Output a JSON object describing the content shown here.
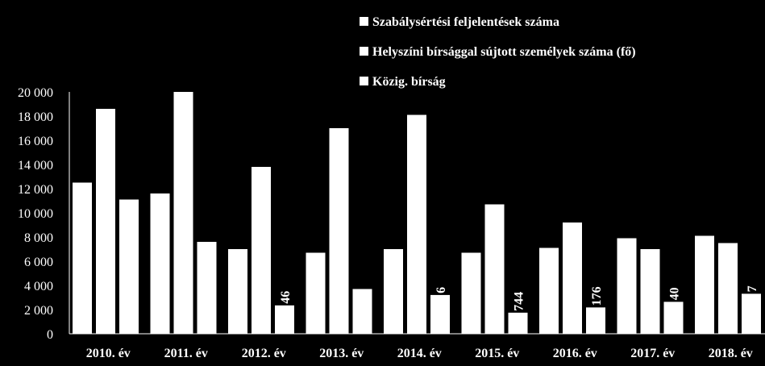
{
  "chart_data": {
    "type": "bar",
    "categories": [
      "2010. év",
      "2011. év",
      "2012. év",
      "2013. év",
      "2014. év",
      "2015. év",
      "2016. év",
      "2017. év",
      "2018. év"
    ],
    "series": [
      {
        "name": "Szabálysértési feljelentések száma",
        "values": [
          12500,
          11600,
          7000,
          6700,
          7000,
          6700,
          7100,
          7900,
          8100
        ]
      },
      {
        "name": "Helyszíni bírsággal sújtott személyek száma (fő)",
        "values": [
          18600,
          20000,
          13800,
          17000,
          18100,
          10700,
          9200,
          7000,
          7500
        ]
      },
      {
        "name": "Közig. bírság",
        "values": [
          11100,
          7600,
          2346,
          3700,
          3206,
          1744,
          2176,
          2640,
          3307
        ]
      }
    ],
    "data_labels": [
      "",
      "",
      "46",
      "",
      "6",
      "744",
      "176",
      "40",
      "7"
    ],
    "yticks": [
      "0",
      "2 000",
      "4 000",
      "6 000",
      "8 000",
      "10 000",
      "12 000",
      "14 000",
      "16 000",
      "18 000",
      "20 000"
    ],
    "ylim": [
      0,
      20000
    ],
    "title": "",
    "xlabel": "",
    "ylabel": "",
    "legend_position": "top-right",
    "grid": false,
    "colors": {
      "background": "#000000",
      "bar": "#ffffff",
      "text": "#ffffff"
    }
  }
}
